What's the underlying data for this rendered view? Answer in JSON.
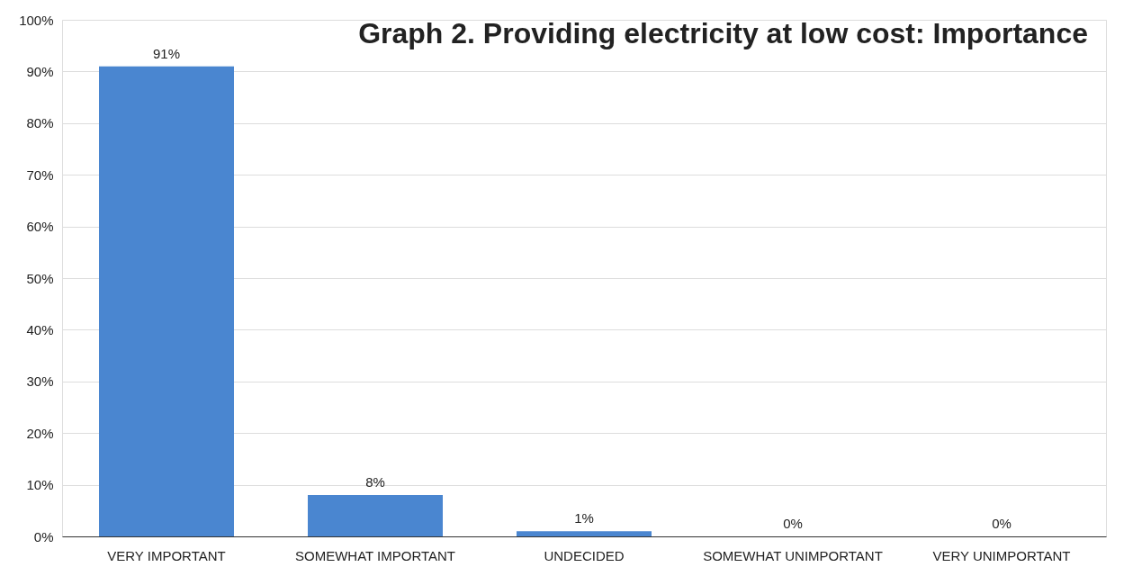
{
  "chart_data": {
    "type": "bar",
    "title": "Graph 2.  Providing electricity at low cost: Importance",
    "categories": [
      "VERY IMPORTANT",
      "SOMEWHAT IMPORTANT",
      "UNDECIDED",
      "SOMEWHAT UNIMPORTANT",
      "VERY UNIMPORTANT"
    ],
    "values": [
      91,
      8,
      1,
      0,
      0
    ],
    "value_labels": [
      "91%",
      "8%",
      "1%",
      "0%",
      "0%"
    ],
    "color": "#4a86d0",
    "ylim": [
      0,
      100
    ],
    "yticks": [
      {
        "value": 0,
        "label": "0%"
      },
      {
        "value": 10,
        "label": "10%"
      },
      {
        "value": 20,
        "label": "20%"
      },
      {
        "value": 30,
        "label": "30%"
      },
      {
        "value": 40,
        "label": "40%"
      },
      {
        "value": 50,
        "label": "50%"
      },
      {
        "value": 60,
        "label": "60%"
      },
      {
        "value": 70,
        "label": "70%"
      },
      {
        "value": 80,
        "label": "80%"
      },
      {
        "value": 90,
        "label": "90%"
      },
      {
        "value": 100,
        "label": "100%"
      }
    ],
    "grid": "y"
  }
}
